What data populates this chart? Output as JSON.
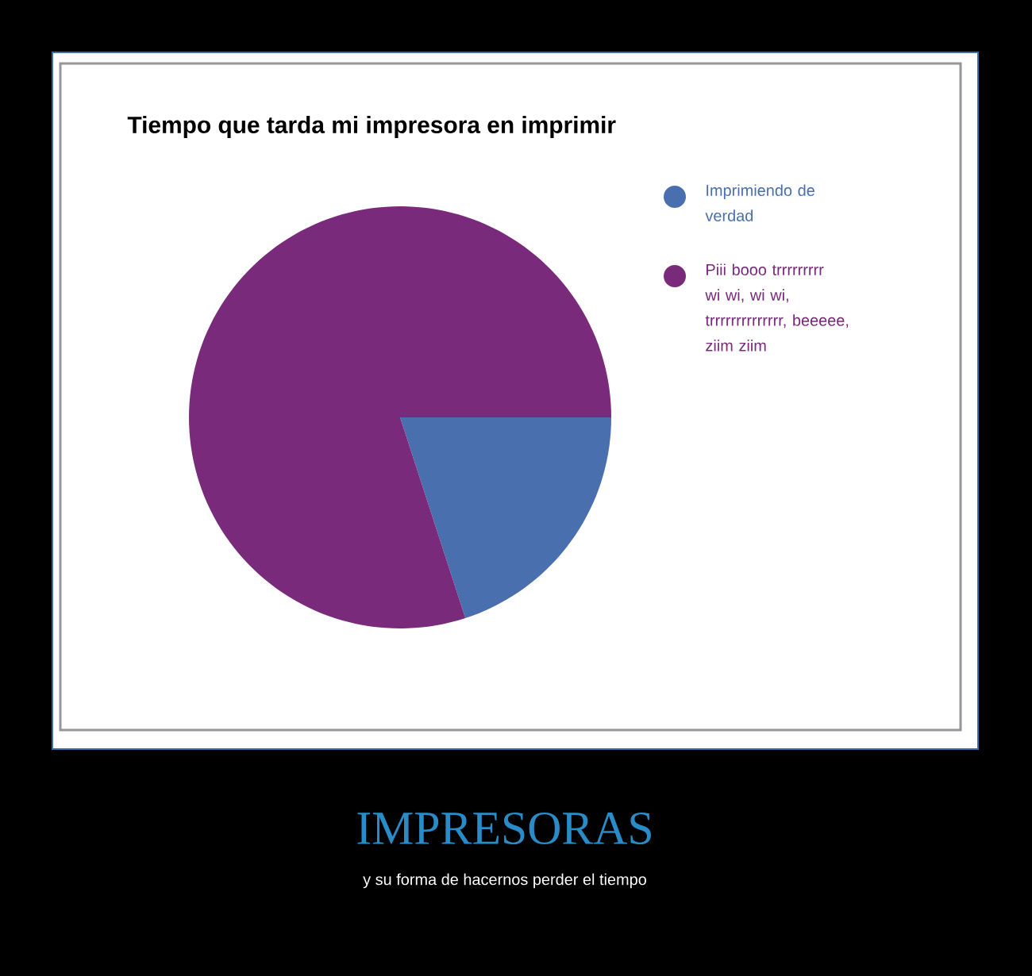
{
  "chart_data": {
    "type": "pie",
    "title": "Tiempo que tarda mi impresora en imprimir",
    "categories": [
      "Imprimiendo de verdad",
      "Piii booo trrrrrrrrr wi wi, wi wi, trrrrrrrrrrrrrr, beeeee, ziim ziim"
    ],
    "values": [
      20,
      80
    ],
    "colors": [
      "#4a6fae",
      "#7a2a7b"
    ],
    "legend": "right",
    "annotations": [
      "IMPRESORAS",
      "y su forma de hacernos perder el tiempo"
    ]
  }
}
